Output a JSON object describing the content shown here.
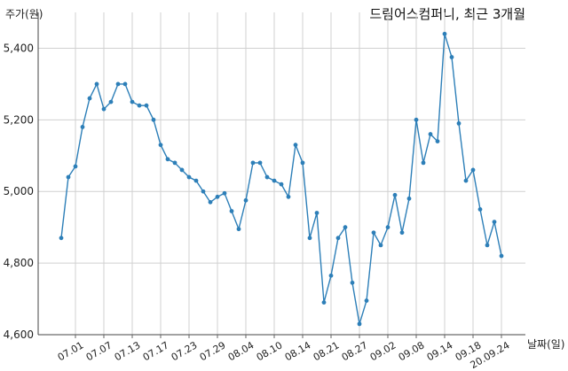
{
  "chart_data": {
    "type": "line",
    "title": "드림어스컴퍼니, 최근 3개월",
    "ylabel": "주가(원)",
    "xlabel": "날짜(일)",
    "ylim": [
      4600,
      5500
    ],
    "y_ticks": [
      4600,
      4800,
      5000,
      5200,
      5400
    ],
    "y_tick_labels": [
      "4,600",
      "4,800",
      "5,000",
      "5,200",
      "5,400"
    ],
    "x_tick_labels": [
      "07.01",
      "07.07",
      "07.13",
      "07.17",
      "07.23",
      "07.29",
      "08.04",
      "08.10",
      "08.14",
      "08.21",
      "08.27",
      "09.02",
      "09.08",
      "09.14",
      "09.18",
      "20.09.24"
    ],
    "x_tick_index": [
      2,
      6,
      10,
      14,
      18,
      22,
      26,
      30,
      34,
      38,
      42,
      46,
      50,
      54,
      58,
      62
    ],
    "grid": true,
    "color": "#2d7fb8",
    "series": [
      {
        "values": [
          4870,
          5040,
          5070,
          5180,
          5260,
          5300,
          5230,
          5250,
          5300,
          5300,
          5250,
          5240,
          5240,
          5200,
          5130,
          5090,
          5080,
          5060,
          5040,
          5030,
          5000,
          4970,
          4985,
          4995,
          4945,
          4895,
          4975,
          5080,
          5080,
          5040,
          5030,
          5020,
          4985,
          5130,
          5080,
          4870,
          4940,
          4690,
          4765,
          4870,
          4900,
          4745,
          4630,
          4695,
          4885,
          4850,
          4900,
          4990,
          4885,
          4980,
          5200,
          5080,
          5160,
          5140,
          5440,
          5375,
          5190,
          5030,
          5060,
          4950,
          4850,
          4915,
          4820
        ]
      }
    ]
  }
}
